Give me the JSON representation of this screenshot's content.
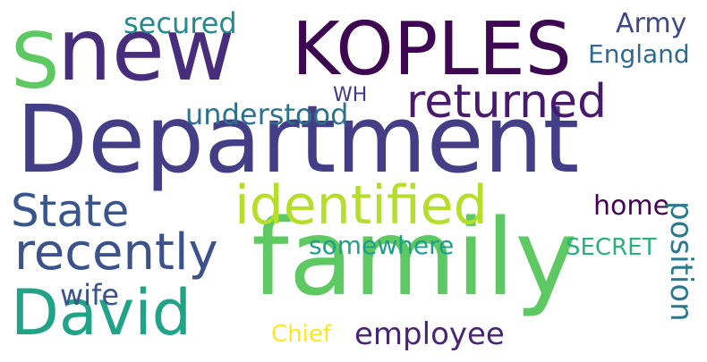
{
  "words": [
    {
      "text": "Department",
      "color": "#433e85"
    },
    {
      "text": "family",
      "color": "#5ec962"
    },
    {
      "text": "KOPLES",
      "color": "#3e0751"
    },
    {
      "text": "new",
      "color": "#472d7b"
    },
    {
      "text": "David",
      "color": "#20a386"
    },
    {
      "text": "identified",
      "color": "#b5de2b"
    },
    {
      "text": "returned",
      "color": "#481a6c"
    },
    {
      "text": "State",
      "color": "#39568c"
    },
    {
      "text": "recently",
      "color": "#3b528b"
    },
    {
      "text": "S",
      "color": "#5ec962"
    },
    {
      "text": "understood",
      "color": "#2c728e"
    },
    {
      "text": "secured",
      "color": "#238a8d"
    },
    {
      "text": "Army",
      "color": "#3f4788"
    },
    {
      "text": "England",
      "color": "#31688e"
    },
    {
      "text": "WH",
      "color": "#443983"
    },
    {
      "text": "home",
      "color": "#440154"
    },
    {
      "text": "somewhere",
      "color": "#1f9e89"
    },
    {
      "text": "SECRET",
      "color": "#2ab07f"
    },
    {
      "text": "wife",
      "color": "#3b528b"
    },
    {
      "text": "position",
      "color": "#2a788e"
    },
    {
      "text": "employee",
      "color": "#482475"
    },
    {
      "text": "Chief",
      "color": "#fde725"
    }
  ]
}
